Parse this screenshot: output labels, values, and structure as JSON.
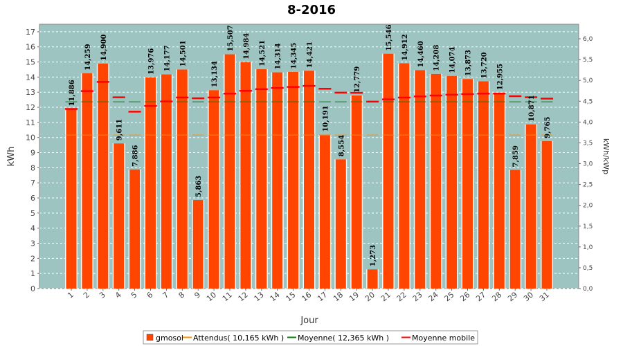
{
  "chart_data": {
    "type": "bar",
    "title": "8-2016",
    "xlabel": "Jour",
    "ylabel": "kWh",
    "y2label": "kWh/kWp",
    "ylim": [
      0,
      17.5
    ],
    "y2lim": [
      0,
      6.35
    ],
    "yticks": [
      0,
      1,
      2,
      3,
      4,
      5,
      6,
      7,
      8,
      9,
      10,
      11,
      12,
      13,
      14,
      15,
      16,
      17
    ],
    "y2ticks": [
      "0,0",
      "0,5",
      "1,0",
      "1,5",
      "2,0",
      "2,5",
      "3,0",
      "3,5",
      "4,0",
      "4,5",
      "5,0",
      "5,5",
      "6,0"
    ],
    "grid": true,
    "legend_position": "bottom",
    "categories": [
      "1",
      "2",
      "3",
      "4",
      "5",
      "6",
      "7",
      "8",
      "9",
      "10",
      "11",
      "12",
      "13",
      "14",
      "15",
      "16",
      "17",
      "18",
      "19",
      "20",
      "21",
      "22",
      "23",
      "24",
      "25",
      "26",
      "27",
      "28",
      "29",
      "30",
      "31"
    ],
    "series": [
      {
        "name": "gmosol",
        "type": "bar",
        "color": "#ff4500",
        "values": [
          11.886,
          14.259,
          14.9,
          9.611,
          7.886,
          13.976,
          14.177,
          14.501,
          5.863,
          13.134,
          15.507,
          14.984,
          14.521,
          14.314,
          14.345,
          14.421,
          10.191,
          8.554,
          12.779,
          1.273,
          15.546,
          14.912,
          14.46,
          14.208,
          14.074,
          13.873,
          13.72,
          12.955,
          7.859,
          10.871,
          9.765
        ],
        "labels": [
          "11,886",
          "14,259",
          "14,900",
          "9,611",
          "7,886",
          "13,976",
          "14,177",
          "14,501",
          "5,863",
          "13,134",
          "15,507",
          "14,984",
          "14,521",
          "14,314",
          "14,345",
          "14,421",
          "10,191",
          "8,554",
          "12,779",
          "1,273",
          "15,546",
          "14,912",
          "14,460",
          "14,208",
          "14,074",
          "13,873",
          "13,720",
          "12,955",
          "7,859",
          "10,871",
          "9,765"
        ]
      },
      {
        "name": "Attendus( 10,165 kWh )",
        "type": "hline-segments",
        "color": "#ff8c00",
        "value": 10.165
      },
      {
        "name": "Moyenne( 12,365 kWh )",
        "type": "hline-segments",
        "color": "#008000",
        "value": 12.365
      },
      {
        "name": "Moyenne mobile",
        "type": "marker-segments",
        "color": "#ff0000",
        "values": [
          11.886,
          13.073,
          13.682,
          12.664,
          11.709,
          12.087,
          12.385,
          12.65,
          12.596,
          12.647,
          12.905,
          13.09,
          13.201,
          13.28,
          13.351,
          13.418,
          13.228,
          12.969,
          12.958,
          12.374,
          12.525,
          12.642,
          12.717,
          12.78,
          12.832,
          12.872,
          12.905,
          12.907,
          12.734,
          12.666,
          12.574
        ]
      }
    ]
  },
  "legend": {
    "items": [
      {
        "label": "gmosol",
        "color": "#ff4500"
      },
      {
        "label": "Attendus( 10,165 kWh )",
        "color": "#ff8c00"
      },
      {
        "label": "Moyenne( 12,365 kWh )",
        "color": "#008000"
      },
      {
        "label": "Moyenne mobile",
        "color": "#ff0000"
      }
    ]
  }
}
